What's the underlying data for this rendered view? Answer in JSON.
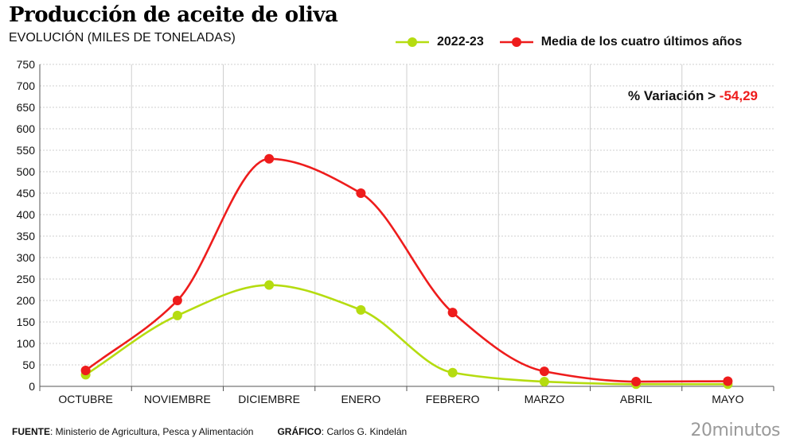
{
  "header": {
    "title": "Producción de aceite de oliva",
    "subtitle": "EVOLUCIÓN (MILES DE TONELADAS)"
  },
  "annotation": {
    "label": "% Variación > ",
    "value": "-54,29"
  },
  "footer": {
    "source_label": "FUENTE",
    "source_text": ": Ministerio de Agricultura, Pesca y Alimentación",
    "author_label": "GRÁFICO",
    "author_text": ": Carlos G. Kindelán",
    "brand": "20minutos"
  },
  "colors": {
    "series_2022_23": "#b5dc10",
    "series_media": "#ee1c1c",
    "grid": "#cfcfcf",
    "axis": "#555555"
  },
  "chart_data": {
    "type": "line",
    "title": "Producción de aceite de oliva",
    "subtitle": "EVOLUCIÓN (MILES DE TONELADAS)",
    "categories": [
      "OCTUBRE",
      "NOVIEMBRE",
      "DICIEMBRE",
      "ENERO",
      "FEBRERO",
      "MARZO",
      "ABRIL",
      "MAYO"
    ],
    "series": [
      {
        "name": "2022-23",
        "color": "#b5dc10",
        "values": [
          27,
          165,
          236,
          178,
          32,
          11,
          5,
          5
        ]
      },
      {
        "name": "Media de los cuatro últimos años",
        "color": "#ee1c1c",
        "values": [
          37,
          200,
          530,
          450,
          172,
          35,
          11,
          12
        ]
      }
    ],
    "ylim": [
      0,
      750
    ],
    "yticks": [
      0,
      50,
      100,
      150,
      200,
      250,
      300,
      350,
      400,
      450,
      500,
      550,
      600,
      650,
      700,
      750
    ],
    "grid": true,
    "smooth": true,
    "legend_position": "top-right"
  }
}
